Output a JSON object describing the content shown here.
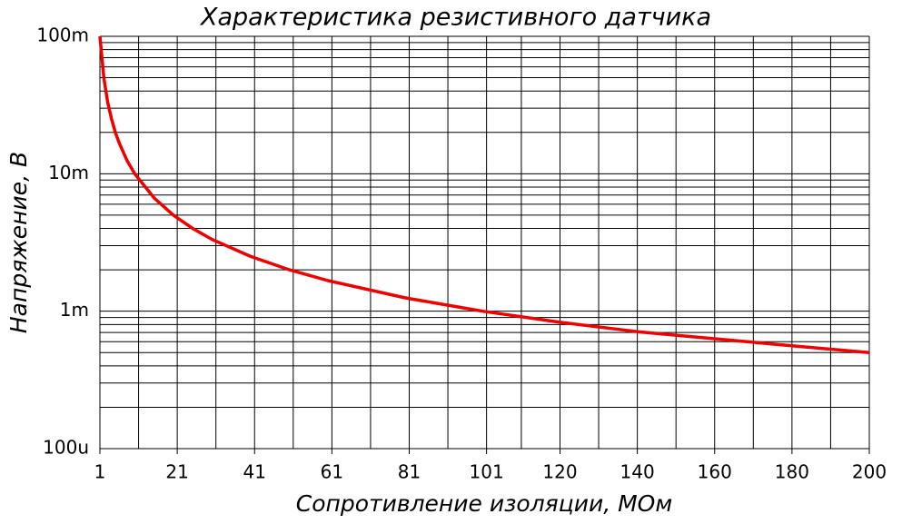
{
  "chart_data": {
    "type": "line",
    "title": "Характеристика резистивного датчика",
    "x_label": "Сопротивление изоляции, МОм",
    "y_label": "Напряжение, В",
    "x": [
      1,
      2,
      3,
      4,
      5,
      6,
      8,
      10,
      15,
      20,
      25,
      30,
      40,
      50,
      60,
      80,
      100,
      120,
      140,
      160,
      180,
      200
    ],
    "values": [
      0.1,
      0.05,
      0.0333,
      0.025,
      0.02,
      0.0167,
      0.0125,
      0.01,
      0.00667,
      0.005,
      0.004,
      0.00333,
      0.0025,
      0.002,
      0.00167,
      0.00125,
      0.001,
      0.00083,
      0.00071,
      0.00063,
      0.00056,
      0.0005
    ],
    "color": "#ee0000",
    "xlim": [
      1,
      200
    ],
    "xticks": [
      1,
      21,
      41,
      61,
      81,
      101,
      120,
      140,
      160,
      180,
      200
    ],
    "xminor": [
      11,
      31,
      51,
      71,
      91,
      110,
      130,
      150,
      170,
      190
    ],
    "ylim": [
      0.0001,
      0.1
    ],
    "yscale": "log",
    "yticks": [
      {
        "value": 0.0001,
        "label": "100u"
      },
      {
        "value": 0.001,
        "label": "1m"
      },
      {
        "value": 0.01,
        "label": "10m"
      },
      {
        "value": 0.1,
        "label": "100m"
      }
    ],
    "yminor": [
      0.0002,
      0.0003,
      0.0004,
      0.0005,
      0.0006,
      0.0007,
      0.0008,
      0.0009,
      0.002,
      0.003,
      0.004,
      0.005,
      0.006,
      0.007,
      0.008,
      0.009,
      0.02,
      0.03,
      0.04,
      0.05,
      0.06,
      0.07,
      0.08,
      0.09
    ],
    "grid": true
  }
}
